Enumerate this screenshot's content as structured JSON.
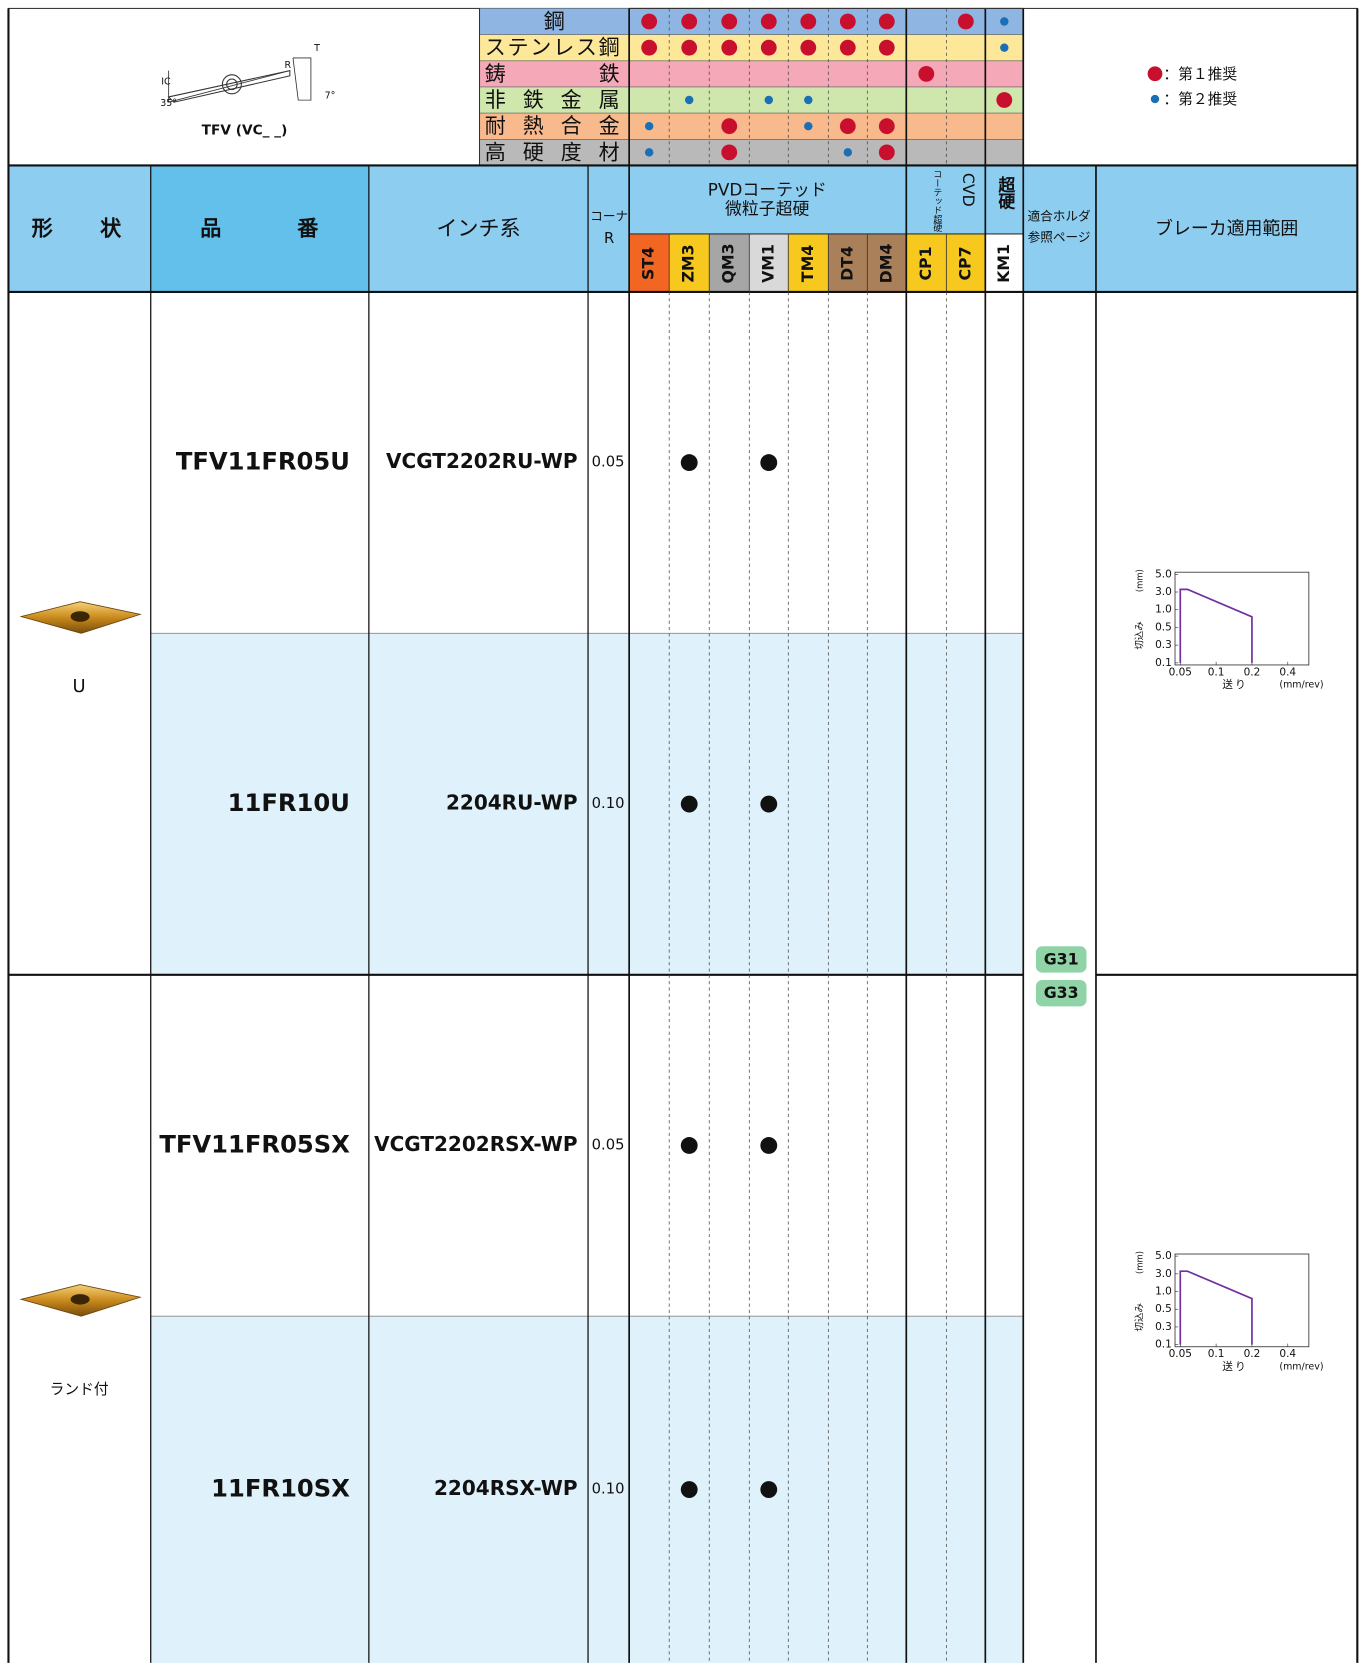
{
  "diagram": {
    "caption": "TFV (VC_ _)",
    "labels": [
      "IC",
      "35°",
      "R",
      "T",
      "7°"
    ]
  },
  "materials": [
    {
      "name": "鋼",
      "color": "#8fb6e2",
      "marks": [
        1,
        1,
        1,
        1,
        1,
        1,
        1,
        null,
        1,
        2
      ]
    },
    {
      "name": "ステンレス鋼",
      "color": "#fde89a",
      "marks": [
        1,
        1,
        1,
        1,
        1,
        1,
        1,
        null,
        null,
        2
      ]
    },
    {
      "name": "鋳鉄",
      "color": "#f4a8b8",
      "marks": [
        null,
        null,
        null,
        null,
        null,
        null,
        null,
        1,
        null,
        null
      ]
    },
    {
      "name": "非鉄金属",
      "color": "#cfe6ad",
      "marks": [
        null,
        2,
        null,
        2,
        2,
        null,
        null,
        null,
        null,
        1
      ]
    },
    {
      "name": "耐熱合金",
      "color": "#f8b98c",
      "marks": [
        2,
        null,
        1,
        null,
        2,
        1,
        1,
        null,
        null,
        null
      ]
    },
    {
      "name": "高硬度材",
      "color": "#b9b9b9",
      "marks": [
        2,
        null,
        1,
        null,
        null,
        2,
        1,
        null,
        null,
        null
      ]
    }
  ],
  "legend": [
    {
      "rank": 1,
      "label": "：第１推奨"
    },
    {
      "rank": 2,
      "label": "：第２推奨"
    }
  ],
  "header": {
    "shape": "形状",
    "part_no": "品番",
    "inch": "インチ系",
    "corner_r": [
      "コーナ",
      "R"
    ],
    "pvd": [
      "PVDコーテッド",
      "微粒子超硬"
    ],
    "cvd": [
      "CVD",
      "コーテッド超硬"
    ],
    "carbide": "超硬",
    "holder": [
      "適合ホルダ",
      "参照ページ"
    ],
    "breaker": "ブレーカ適用範囲"
  },
  "grades": [
    {
      "name": "ST4",
      "color": "#f26522",
      "text_color": "#111111"
    },
    {
      "name": "ZM3",
      "color": "#f7c91e",
      "text_color": "#111111"
    },
    {
      "name": "QM3",
      "color": "#a6a6a6",
      "text_color": "#111111"
    },
    {
      "name": "VM1",
      "color": "#d9d9d9",
      "text_color": "#111111"
    },
    {
      "name": "TM4",
      "color": "#f7c91e",
      "text_color": "#111111"
    },
    {
      "name": "DT4",
      "color": "#a9805a",
      "text_color": "#e8202a"
    },
    {
      "name": "DM4",
      "color": "#a9805a",
      "text_color": "#e8202a"
    },
    {
      "name": "CP1",
      "color": "#f7c91e",
      "text_color": "#111111"
    },
    {
      "name": "CP7",
      "color": "#f7c91e",
      "text_color": "#111111"
    },
    {
      "name": "KM1",
      "color": "#ffffff",
      "text_color": "#111111"
    }
  ],
  "groups": [
    {
      "shape": "U",
      "rows": [
        {
          "part_no": "TFV11FR05U",
          "inch": "VCGT2202RU-WP",
          "corner_r": "0.05",
          "marks": [
            null,
            1,
            null,
            1,
            null,
            null,
            null,
            null,
            null,
            null
          ]
        },
        {
          "part_no": "11FR10U",
          "inch": "2204RU-WP",
          "corner_r": "0.10",
          "marks": [
            null,
            1,
            null,
            1,
            null,
            null,
            null,
            null,
            null,
            null
          ]
        }
      ],
      "chart": {
        "y_label": "切込み",
        "y_unit": "(mm)",
        "x_label": "送り",
        "x_unit": "(mm/rev)",
        "color": "#7030a0",
        "x": [
          0.05,
          0.05,
          0.06,
          0.2,
          0.2
        ],
        "y": [
          0.1,
          3.3,
          3.3,
          0.8,
          0.1
        ],
        "xticks": [
          0.05,
          0.1,
          0.2,
          0.4
        ],
        "yticks": [
          0.1,
          0.3,
          0.5,
          {
            "value": 1,
            "label": "1.0"
          },
          {
            "value": 3,
            "label": "3.0"
          },
          {
            "value": 5,
            "label": "5.0"
          }
        ]
      }
    },
    {
      "shape": "ランド付",
      "rows": [
        {
          "part_no": "TFV11FR05SX",
          "inch": "VCGT2202RSX-WP",
          "corner_r": "0.05",
          "marks": [
            null,
            1,
            null,
            1,
            null,
            null,
            null,
            null,
            null,
            null
          ]
        },
        {
          "part_no": "11FR10SX",
          "inch": "2204RSX-WP",
          "corner_r": "0.10",
          "marks": [
            null,
            1,
            null,
            1,
            null,
            null,
            null,
            null,
            null,
            null
          ]
        }
      ],
      "chart": {
        "y_label": "切込み",
        "y_unit": "(mm)",
        "x_label": "送り",
        "x_unit": "(mm/rev)",
        "color": "#7030a0",
        "x": [
          0.05,
          0.05,
          0.06,
          0.2,
          0.2
        ],
        "y": [
          0.1,
          3.3,
          3.3,
          0.8,
          0.1
        ],
        "xticks": [
          0.05,
          0.1,
          0.2,
          0.4
        ],
        "yticks": [
          0.1,
          0.3,
          0.5,
          {
            "value": 1,
            "label": "1.0"
          },
          {
            "value": 3,
            "label": "3.0"
          },
          {
            "value": 5,
            "label": "5.0"
          }
        ]
      }
    }
  ],
  "holder_pages": [
    "G31",
    "G33"
  ]
}
